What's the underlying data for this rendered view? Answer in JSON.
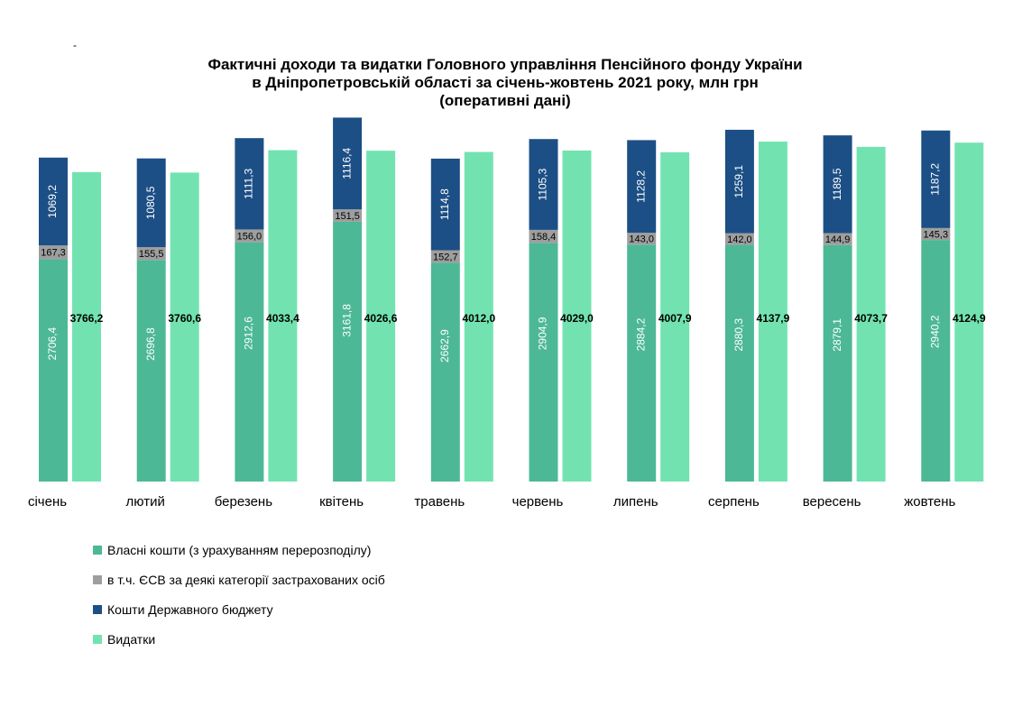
{
  "page": {
    "stray_mark": "-"
  },
  "chart_title": {
    "line1": "Фактичні доходи та видатки Головного управління Пенсійного фонду України",
    "line2": "в Дніпропетровській області за січень-жовтень 2021 року,  млн грн",
    "line3": "(оперативні дані)"
  },
  "colors": {
    "own": "#4db896",
    "esv": "#9e9e9e",
    "state": "#1c4f85",
    "expenses": "#72e3b0"
  },
  "chart_data": {
    "type": "bar",
    "title": "Фактичні доходи та видатки Головного управління Пенсійного фонду України в Дніпропетровській області за січень-жовтень 2021 року,  млн грн (оперативні дані)",
    "categories": [
      "січень",
      "лютий",
      "березень",
      "квітень",
      "травень",
      "червень",
      "липень",
      "серпень",
      "вересень",
      "жовтень"
    ],
    "series": [
      {
        "name": "Власні кошти (з урахуванням перерозподілу)",
        "stack": "income",
        "values": [
          2706.4,
          2696.8,
          2912.6,
          3161.8,
          2662.9,
          2904.9,
          2884.2,
          2880.3,
          2879.1,
          2940.2
        ],
        "labels": [
          "2706,4",
          "2696,8",
          "2912,6",
          "3161,8",
          "2662,9",
          "2904,9",
          "2884,2",
          "2880,3",
          "2879,1",
          "2940,2"
        ]
      },
      {
        "name": "в т.ч. ЄСВ за деякі категорії застрахованих осіб",
        "stack": "income",
        "values": [
          167.3,
          155.5,
          156.0,
          151.5,
          152.7,
          158.4,
          143.0,
          142.0,
          144.9,
          145.3
        ],
        "labels": [
          "167,3",
          "155,5",
          "156,0",
          "151,5",
          "152,7",
          "158,4",
          "143,0",
          "142,0",
          "144,9",
          "145,3"
        ]
      },
      {
        "name": "Кошти Державного бюджету",
        "stack": "income",
        "values": [
          1069.2,
          1080.5,
          1111.3,
          1116.4,
          1114.8,
          1105.3,
          1128.2,
          1259.1,
          1189.5,
          1187.2
        ],
        "labels": [
          "1069,2",
          "1080,5",
          "1111,3",
          "1116,4",
          "1114,8",
          "1105,3",
          "1128,2",
          "1259,1",
          "1189,5",
          "1187,2"
        ]
      },
      {
        "name": "Видатки",
        "stack": "expenses",
        "values": [
          3766.2,
          3760.6,
          4033.4,
          4026.6,
          4012.0,
          4029.0,
          4007.9,
          4137.9,
          4073.7,
          4124.9
        ],
        "labels": [
          "3766,2",
          "3760,6",
          "4033,4",
          "4026,6",
          "4012,0",
          "4029,0",
          "4007,9",
          "4137,9",
          "4073,7",
          "4124,9"
        ]
      }
    ],
    "legend_position": "bottom-left",
    "grid": false,
    "ylim": [
      0,
      4400
    ]
  }
}
